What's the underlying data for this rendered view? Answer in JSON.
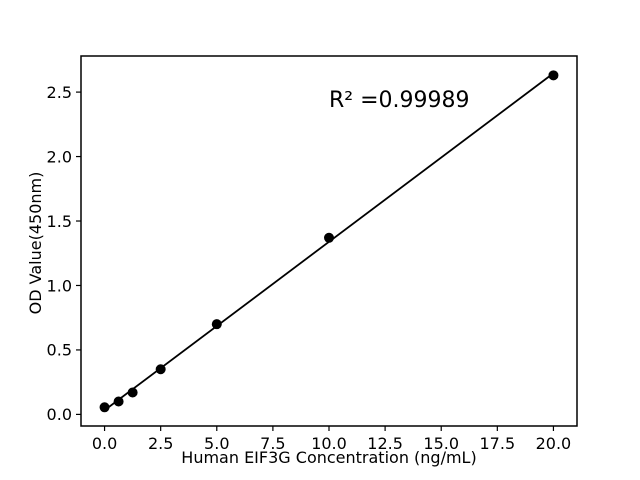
{
  "figure": {
    "background": "#ffffff",
    "ink_color": "#000000"
  },
  "chart_data": {
    "type": "scatter",
    "title": "",
    "xlabel": "Human EIF3G Concentration (ng/mL)",
    "ylabel": "OD Value(450nm)",
    "x": [
      0,
      0.625,
      1.25,
      2.5,
      5,
      10,
      20
    ],
    "y": [
      0.055,
      0.1,
      0.17,
      0.35,
      0.7,
      1.37,
      2.63
    ],
    "trendline": {
      "x": [
        0,
        20
      ],
      "y": [
        0.032,
        2.646
      ]
    },
    "annotation": {
      "text": "R² =0.99989",
      "x": 10,
      "y": 2.37
    },
    "xlim": [
      -1.05,
      21.05
    ],
    "ylim": [
      -0.09,
      2.78
    ],
    "xticks": [
      "0.0",
      "2.5",
      "5.0",
      "7.5",
      "10.0",
      "12.5",
      "15.0",
      "17.5",
      "20.0"
    ],
    "xtick_values": [
      0,
      2.5,
      5,
      7.5,
      10,
      12.5,
      15,
      17.5,
      20
    ],
    "yticks": [
      "0.0",
      "0.5",
      "1.0",
      "1.5",
      "2.0",
      "2.5"
    ],
    "ytick_values": [
      0,
      0.5,
      1,
      1.5,
      2,
      2.5
    ],
    "grid": false,
    "legend": null,
    "marker_color": "#000000",
    "line_color": "#000000",
    "marker_radius_px": 5
  }
}
